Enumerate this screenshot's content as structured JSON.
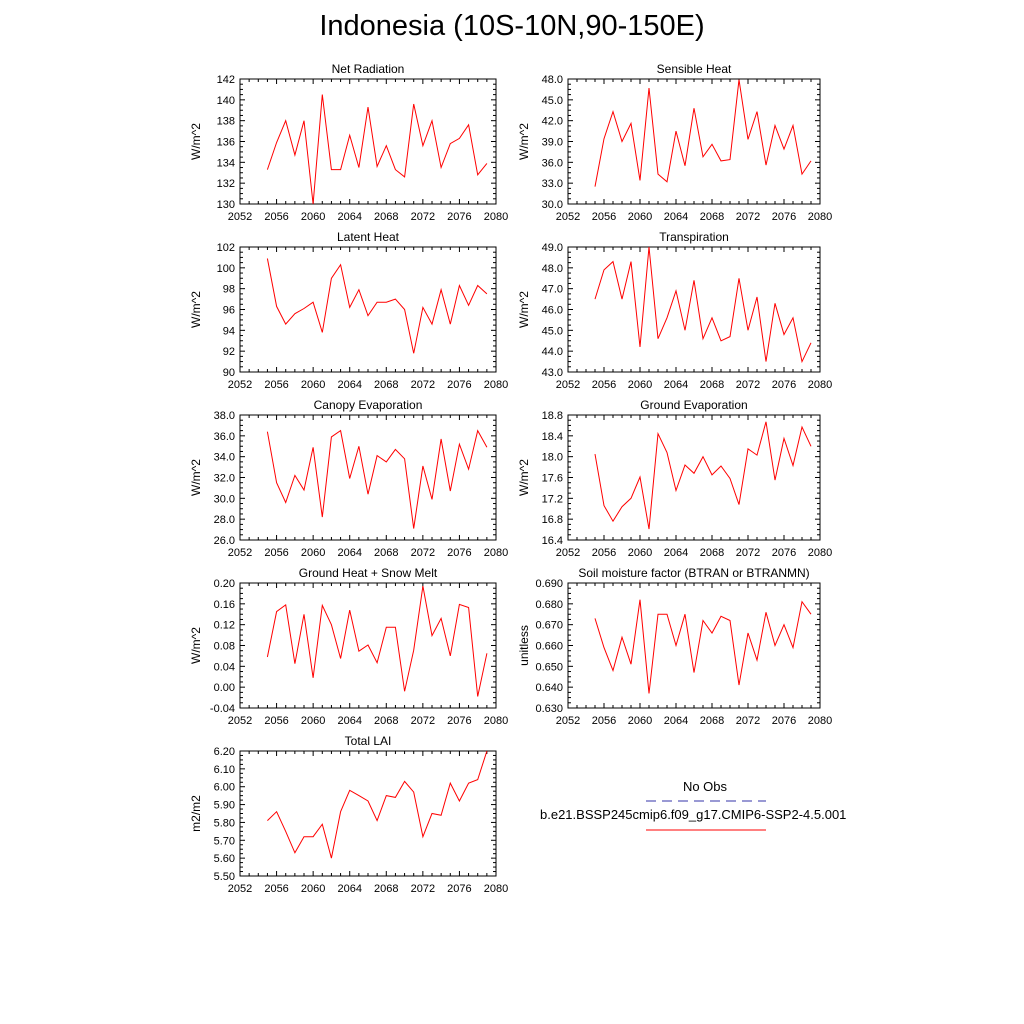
{
  "title": "Indonesia (10S-10N,90-150E)",
  "legend": {
    "obs_label": "No Obs",
    "obs_color": "#3333aa",
    "model_label": "b.e21.BSSP245cmip6.f09_g17.CMIP6-SSP2-4.5.001",
    "model_color": "#ff0000"
  },
  "chart_data": [
    {
      "type": "line",
      "title": "Net Radiation",
      "ylabel": "W/m^2",
      "xlim": [
        2052,
        2080
      ],
      "ylim": [
        130,
        142
      ],
      "xticks": [
        2052,
        2056,
        2060,
        2064,
        2068,
        2072,
        2076,
        2080
      ],
      "yticks": [
        "130",
        "132",
        "134",
        "136",
        "138",
        "140",
        "142"
      ],
      "x": [
        2055,
        2056,
        2057,
        2058,
        2059,
        2060,
        2061,
        2062,
        2063,
        2064,
        2065,
        2066,
        2067,
        2068,
        2069,
        2070,
        2071,
        2072,
        2073,
        2074,
        2075,
        2076,
        2077,
        2078,
        2079
      ],
      "y": [
        133.3,
        135.9,
        138.0,
        134.7,
        138.0,
        130.0,
        140.5,
        133.3,
        133.3,
        136.6,
        133.5,
        139.3,
        133.6,
        135.6,
        133.3,
        132.6,
        139.6,
        135.6,
        138.0,
        133.5,
        135.8,
        136.3,
        137.6,
        132.8,
        133.9
      ]
    },
    {
      "type": "line",
      "title": "Sensible Heat",
      "ylabel": "W/m^2",
      "xlim": [
        2052,
        2080
      ],
      "ylim": [
        30,
        48
      ],
      "xticks": [
        2052,
        2056,
        2060,
        2064,
        2068,
        2072,
        2076,
        2080
      ],
      "yticks": [
        "30.0",
        "33.0",
        "36.0",
        "39.0",
        "42.0",
        "45.0",
        "48.0"
      ],
      "x": [
        2055,
        2056,
        2057,
        2058,
        2059,
        2060,
        2061,
        2062,
        2063,
        2064,
        2065,
        2066,
        2067,
        2068,
        2069,
        2070,
        2071,
        2072,
        2073,
        2074,
        2075,
        2076,
        2077,
        2078,
        2079
      ],
      "y": [
        32.5,
        39.4,
        43.3,
        39.0,
        41.6,
        33.4,
        46.7,
        34.3,
        33.2,
        40.5,
        35.5,
        43.8,
        36.8,
        38.6,
        36.2,
        36.4,
        47.9,
        39.3,
        43.3,
        35.6,
        41.3,
        37.9,
        41.3,
        34.3,
        36.2
      ]
    },
    {
      "type": "line",
      "title": "Latent Heat",
      "ylabel": "W/m^2",
      "xlim": [
        2052,
        2080
      ],
      "ylim": [
        90,
        102
      ],
      "xticks": [
        2052,
        2056,
        2060,
        2064,
        2068,
        2072,
        2076,
        2080
      ],
      "yticks": [
        "90",
        "92",
        "94",
        "96",
        "98",
        "100",
        "102"
      ],
      "x": [
        2055,
        2056,
        2057,
        2058,
        2059,
        2060,
        2061,
        2062,
        2063,
        2064,
        2065,
        2066,
        2067,
        2068,
        2069,
        2070,
        2071,
        2072,
        2073,
        2074,
        2075,
        2076,
        2077,
        2078,
        2079
      ],
      "y": [
        100.9,
        96.3,
        94.6,
        95.6,
        96.1,
        96.7,
        93.8,
        99.0,
        100.3,
        96.2,
        97.9,
        95.4,
        96.7,
        96.7,
        97.0,
        96.0,
        91.8,
        96.2,
        94.6,
        97.9,
        94.6,
        98.3,
        96.4,
        98.3,
        97.5
      ]
    },
    {
      "type": "line",
      "title": "Transpiration",
      "ylabel": "W/m^2",
      "xlim": [
        2052,
        2080
      ],
      "ylim": [
        43,
        49
      ],
      "xticks": [
        2052,
        2056,
        2060,
        2064,
        2068,
        2072,
        2076,
        2080
      ],
      "yticks": [
        "43.0",
        "44.0",
        "45.0",
        "46.0",
        "47.0",
        "48.0",
        "49.0"
      ],
      "x": [
        2055,
        2056,
        2057,
        2058,
        2059,
        2060,
        2061,
        2062,
        2063,
        2064,
        2065,
        2066,
        2067,
        2068,
        2069,
        2070,
        2071,
        2072,
        2073,
        2074,
        2075,
        2076,
        2077,
        2078,
        2079
      ],
      "y": [
        46.5,
        47.9,
        48.3,
        46.5,
        48.3,
        44.2,
        49.0,
        44.6,
        45.6,
        46.9,
        45.0,
        47.4,
        44.6,
        45.6,
        44.5,
        44.7,
        47.5,
        45.0,
        46.6,
        43.5,
        46.3,
        44.8,
        45.6,
        43.5,
        44.4
      ]
    },
    {
      "type": "line",
      "title": "Canopy Evaporation",
      "ylabel": "W/m^2",
      "xlim": [
        2052,
        2080
      ],
      "ylim": [
        26,
        38
      ],
      "xticks": [
        2052,
        2056,
        2060,
        2064,
        2068,
        2072,
        2076,
        2080
      ],
      "yticks": [
        "26.0",
        "28.0",
        "30.0",
        "32.0",
        "34.0",
        "36.0",
        "38.0"
      ],
      "x": [
        2055,
        2056,
        2057,
        2058,
        2059,
        2060,
        2061,
        2062,
        2063,
        2064,
        2065,
        2066,
        2067,
        2068,
        2069,
        2070,
        2071,
        2072,
        2073,
        2074,
        2075,
        2076,
        2077,
        2078,
        2079
      ],
      "y": [
        36.4,
        31.5,
        29.6,
        32.2,
        30.8,
        34.9,
        28.2,
        35.9,
        36.5,
        31.9,
        35.0,
        30.4,
        34.1,
        33.5,
        34.7,
        33.8,
        27.1,
        33.1,
        29.9,
        35.7,
        30.7,
        35.2,
        32.8,
        36.5,
        34.9
      ]
    },
    {
      "type": "line",
      "title": "Ground Evaporation",
      "ylabel": "W/m^2",
      "xlim": [
        2052,
        2080
      ],
      "ylim": [
        16.4,
        18.8
      ],
      "xticks": [
        2052,
        2056,
        2060,
        2064,
        2068,
        2072,
        2076,
        2080
      ],
      "yticks": [
        "16.4",
        "16.8",
        "17.2",
        "17.6",
        "18.0",
        "18.4",
        "18.8"
      ],
      "x": [
        2055,
        2056,
        2057,
        2058,
        2059,
        2060,
        2061,
        2062,
        2063,
        2064,
        2065,
        2066,
        2067,
        2068,
        2069,
        2070,
        2071,
        2072,
        2073,
        2074,
        2075,
        2076,
        2077,
        2078,
        2079
      ],
      "y": [
        18.05,
        17.06,
        16.76,
        17.04,
        17.2,
        17.61,
        16.61,
        18.44,
        18.08,
        17.35,
        17.84,
        17.68,
        18.0,
        17.65,
        17.82,
        17.58,
        17.08,
        18.15,
        18.03,
        18.67,
        17.55,
        18.35,
        17.83,
        18.57,
        18.2
      ]
    },
    {
      "type": "line",
      "title": "Ground Heat + Snow Melt",
      "ylabel": "W/m^2",
      "xlim": [
        2052,
        2080
      ],
      "ylim": [
        -0.04,
        0.2
      ],
      "xticks": [
        2052,
        2056,
        2060,
        2064,
        2068,
        2072,
        2076,
        2080
      ],
      "yticks": [
        "-0.04",
        "0.00",
        "0.04",
        "0.08",
        "0.12",
        "0.16",
        "0.20"
      ],
      "x": [
        2055,
        2056,
        2057,
        2058,
        2059,
        2060,
        2061,
        2062,
        2063,
        2064,
        2065,
        2066,
        2067,
        2068,
        2069,
        2070,
        2071,
        2072,
        2073,
        2074,
        2075,
        2076,
        2077,
        2078,
        2079
      ],
      "y": [
        0.058,
        0.145,
        0.158,
        0.045,
        0.14,
        0.018,
        0.157,
        0.12,
        0.055,
        0.148,
        0.069,
        0.081,
        0.047,
        0.115,
        0.115,
        -0.008,
        0.071,
        0.194,
        0.099,
        0.132,
        0.06,
        0.159,
        0.153,
        -0.018,
        0.065
      ]
    },
    {
      "type": "line",
      "title": "Soil moisture factor (BTRAN or BTRANMN)",
      "ylabel": "unitless",
      "xlim": [
        2052,
        2080
      ],
      "ylim": [
        0.63,
        0.69
      ],
      "xticks": [
        2052,
        2056,
        2060,
        2064,
        2068,
        2072,
        2076,
        2080
      ],
      "yticks": [
        "0.630",
        "0.640",
        "0.650",
        "0.660",
        "0.670",
        "0.680",
        "0.690"
      ],
      "x": [
        2055,
        2056,
        2057,
        2058,
        2059,
        2060,
        2061,
        2062,
        2063,
        2064,
        2065,
        2066,
        2067,
        2068,
        2069,
        2070,
        2071,
        2072,
        2073,
        2074,
        2075,
        2076,
        2077,
        2078,
        2079
      ],
      "y": [
        0.673,
        0.659,
        0.648,
        0.664,
        0.651,
        0.682,
        0.637,
        0.675,
        0.675,
        0.66,
        0.675,
        0.647,
        0.672,
        0.666,
        0.674,
        0.672,
        0.641,
        0.666,
        0.653,
        0.676,
        0.66,
        0.67,
        0.659,
        0.681,
        0.675
      ]
    },
    {
      "type": "line",
      "title": "Total LAI",
      "ylabel": "m2/m2",
      "xlim": [
        2052,
        2080
      ],
      "ylim": [
        5.5,
        6.2
      ],
      "xticks": [
        2052,
        2056,
        2060,
        2064,
        2068,
        2072,
        2076,
        2080
      ],
      "yticks": [
        "5.50",
        "5.60",
        "5.70",
        "5.80",
        "5.90",
        "6.00",
        "6.10",
        "6.20"
      ],
      "x": [
        2055,
        2056,
        2057,
        2058,
        2059,
        2060,
        2061,
        2062,
        2063,
        2064,
        2065,
        2066,
        2067,
        2068,
        2069,
        2070,
        2071,
        2072,
        2073,
        2074,
        2075,
        2076,
        2077,
        2078,
        2079
      ],
      "y": [
        5.81,
        5.86,
        5.75,
        5.63,
        5.72,
        5.72,
        5.79,
        5.6,
        5.86,
        5.98,
        5.95,
        5.92,
        5.81,
        5.95,
        5.94,
        6.03,
        5.97,
        5.72,
        5.85,
        5.84,
        6.02,
        5.92,
        6.02,
        6.04,
        6.2
      ]
    }
  ]
}
